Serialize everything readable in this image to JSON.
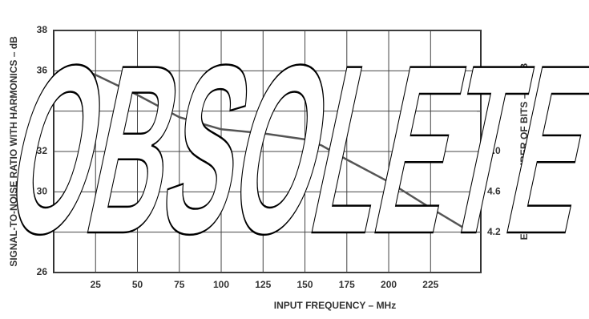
{
  "chart_data": {
    "type": "line",
    "x_label": "INPUT FREQUENCY – MHz",
    "y_label": "SIGNAL-TO-NOISE RATIO WITH HARMONICS – dB",
    "y2_label": "EFFECTIVE NUMBER OF BITS – ENOB",
    "watermark": "OBSOLETE",
    "x": [
      12,
      25,
      50,
      75,
      100,
      125,
      150,
      160,
      175,
      200,
      225,
      245
    ],
    "series": [
      {
        "name": "SNR",
        "color": "#555555",
        "values": [
          36.2,
          35.8,
          34.8,
          33.7,
          33.1,
          32.9,
          32.6,
          32.3,
          31.6,
          30.5,
          29.2,
          28.2
        ]
      }
    ],
    "xlim": [
      0,
      255
    ],
    "xticks": [
      25,
      50,
      75,
      100,
      125,
      150,
      175,
      200,
      225
    ],
    "ylim": [
      26,
      38
    ],
    "yticks": [
      26,
      28,
      30,
      32,
      34,
      36,
      38
    ],
    "y2lim": [
      3.8,
      6.2
    ],
    "y2ticks": [
      4.2,
      4.6,
      {
        "value": 5,
        "label": "5.0"
      },
      5.4,
      5.8
    ],
    "grid": true
  }
}
